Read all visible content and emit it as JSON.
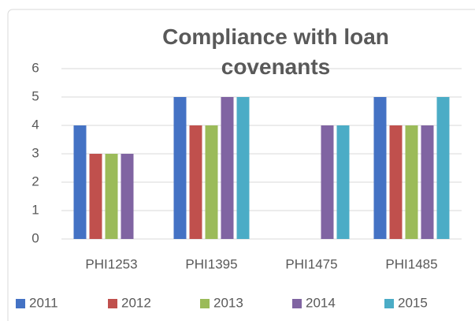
{
  "chart_data": {
    "type": "bar",
    "title": "Compliance with loan covenants",
    "categories": [
      "PHI1253",
      "PHI1395",
      "PHI1475",
      "PHI1485"
    ],
    "series": [
      {
        "name": "2011",
        "color": "#4472c4",
        "values": [
          4,
          5,
          null,
          5
        ]
      },
      {
        "name": "2012",
        "color": "#c0504d",
        "values": [
          3,
          4,
          null,
          4
        ]
      },
      {
        "name": "2013",
        "color": "#9bbb59",
        "values": [
          3,
          4,
          null,
          4
        ]
      },
      {
        "name": "2014",
        "color": "#8064a2",
        "values": [
          3,
          5,
          4,
          4
        ]
      },
      {
        "name": "2015",
        "color": "#4bacc6",
        "values": [
          null,
          5,
          4,
          5
        ]
      }
    ],
    "ylim": [
      0,
      6
    ],
    "yticks": [
      0,
      1,
      2,
      3,
      4,
      5,
      6
    ],
    "grid": true,
    "legend": "bottom"
  }
}
